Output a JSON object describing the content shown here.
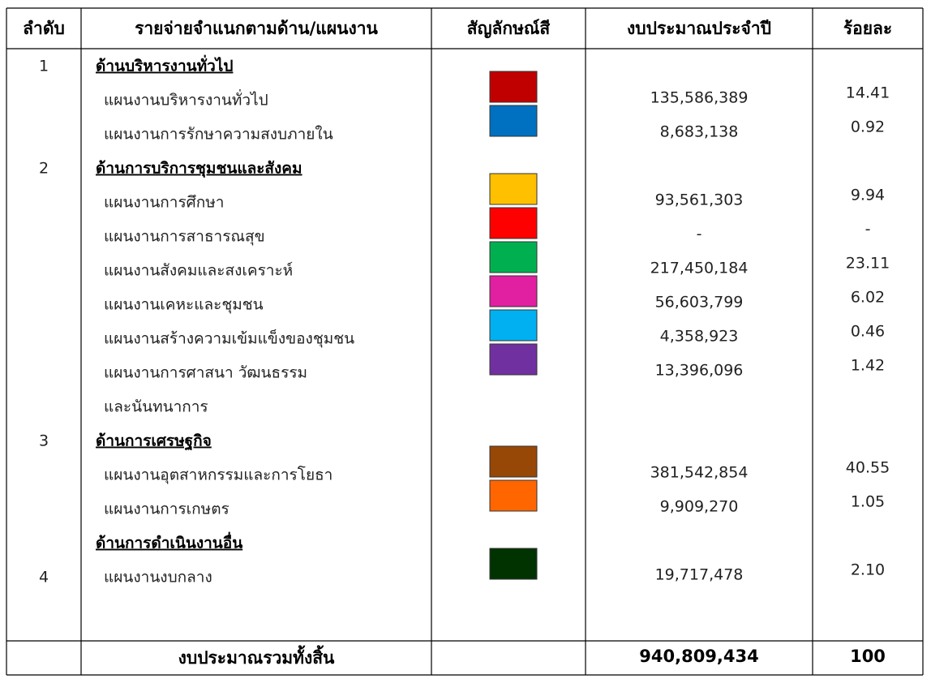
{
  "table": {
    "headers": [
      "ลำดับ",
      "รายจ่ายจำแนกตามด้าน/แผนงาน",
      "สัญลักษณ์สี",
      "งบประมาณประจำปี",
      "ร้อยละ"
    ],
    "sections": [
      {
        "number": "1",
        "title": "ด้านบริหารงานทั่วไป",
        "plans": [
          {
            "name": [
              "แผนงานบริหารงานทั่วไป"
            ],
            "color": "#c00000",
            "budget": "135,586,389",
            "percent": "14.41"
          },
          {
            "name": [
              "แผนงานการรักษาความสงบภายใน"
            ],
            "color": "#0070c0",
            "budget": "8,683,138",
            "percent": "0.92"
          }
        ]
      },
      {
        "number": "2",
        "title": "ด้านการบริการชุมชนและสังคม",
        "plans": [
          {
            "name": [
              "แผนงานการศึกษา"
            ],
            "color": "#ffc000",
            "budget": "93,561,303",
            "percent": "9.94"
          },
          {
            "name": [
              "แผนงานการสาธารณสุข"
            ],
            "color": "#ff0000",
            "budget": "-",
            "percent": "-"
          },
          {
            "name": [
              "แผนงานสังคมและสงเคราะห์"
            ],
            "color": "#00b050",
            "budget": "217,450,184",
            "percent": "23.11"
          },
          {
            "name": [
              "แผนงานเคหะและชุมชน"
            ],
            "color": "#e020a0",
            "budget": "56,603,799",
            "percent": "6.02"
          },
          {
            "name": [
              "แผนงานสร้างความเข้มแข็งของชุมชน"
            ],
            "color": "#00b0f0",
            "budget": "4,358,923",
            "percent": "0.46"
          },
          {
            "name": [
              "แผนงานการศาสนา วัฒนธรรม",
              "และนันทนาการ"
            ],
            "color": "#7030a0",
            "budget": "13,396,096",
            "percent": "1.42"
          }
        ]
      },
      {
        "number": "3",
        "title": "ด้านการเศรษฐกิจ",
        "plans": [
          {
            "name": [
              "แผนงานอุตสาหกรรมและการโยธา"
            ],
            "color": "#974706",
            "budget": "381,542,854",
            "percent": "40.55"
          },
          {
            "name": [
              "แผนงานการเกษตร"
            ],
            "color": "#ff6600",
            "budget": "9,909,270",
            "percent": "1.05"
          }
        ]
      },
      {
        "number": "4",
        "title": "ด้านการดำเนินงานอื่น",
        "plans": [
          {
            "name": [
              "แผนงานงบกลาง"
            ],
            "color": "#003300",
            "budget": "19,717,478",
            "percent": "2.10"
          }
        ]
      }
    ],
    "total": {
      "label": "งบประมาณรวมทั้งสิ้น",
      "budget": "940,809,434",
      "percent": "100"
    }
  }
}
